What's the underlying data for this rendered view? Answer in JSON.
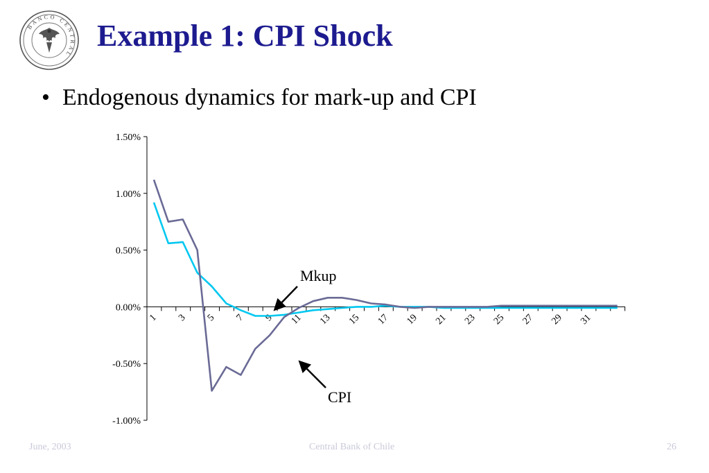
{
  "slide": {
    "title": "Example 1: CPI Shock",
    "bullet_marker": "•",
    "bullet_text": "Endogenous dynamics for mark-up and CPI",
    "logo_ring_text": "BANCO CENTRAL",
    "footer": {
      "date": "June, 2003",
      "center": "Central Bank of Chile",
      "page": "26"
    }
  },
  "colors": {
    "title": "#1d1b8f",
    "series_mkup": "#00c8f0",
    "series_cpi": "#6a6a96",
    "footer": "#c9c9d9"
  },
  "chart_data": {
    "type": "line",
    "title": "",
    "xlabel": "",
    "ylabel": "",
    "x": [
      1,
      2,
      3,
      4,
      5,
      6,
      7,
      8,
      9,
      10,
      11,
      12,
      13,
      14,
      15,
      16,
      17,
      18,
      19,
      20,
      21,
      22,
      23,
      24,
      25,
      26,
      27,
      28,
      29,
      30,
      31,
      32,
      33
    ],
    "x_tick_labels": [
      "1",
      "3",
      "5",
      "7",
      "9",
      "11",
      "13",
      "15",
      "17",
      "19",
      "21",
      "23",
      "25",
      "27",
      "29",
      "31"
    ],
    "ylim": [
      -0.01,
      0.015
    ],
    "y_ticks": [
      {
        "value": 0.015,
        "label": "1.50%"
      },
      {
        "value": 0.01,
        "label": "1.00%"
      },
      {
        "value": 0.005,
        "label": "0.50%"
      },
      {
        "value": 0.0,
        "label": "0.00%"
      },
      {
        "value": -0.005,
        "label": "-0.50%"
      },
      {
        "value": -0.01,
        "label": "-1.00%"
      }
    ],
    "grid": false,
    "series": [
      {
        "name": "Mkup",
        "color": "#00c8f0",
        "values": [
          0.0092,
          0.0056,
          0.0057,
          0.003,
          0.0018,
          0.0003,
          -0.0003,
          -0.0008,
          -0.0008,
          -0.0007,
          -0.0005,
          -0.0003,
          -0.0002,
          -0.0001,
          0.0,
          0.0,
          0.0001,
          0.0,
          0.0,
          0.0,
          -0.0001,
          -0.0001,
          -0.0001,
          -0.0001,
          -0.0001,
          -0.0001,
          -0.0001,
          -0.0001,
          -0.0001,
          -0.0001,
          -0.0001,
          -0.0001,
          -0.0001
        ]
      },
      {
        "name": "CPI",
        "color": "#6a6a96",
        "values": [
          0.0112,
          0.0075,
          0.0077,
          0.005,
          -0.0074,
          -0.0053,
          -0.006,
          -0.0037,
          -0.0025,
          -0.0009,
          -0.0001,
          0.0005,
          0.0008,
          0.0008,
          0.0006,
          0.0003,
          0.0002,
          0.0,
          -0.0001,
          0.0,
          0.0,
          0.0,
          0.0,
          0.0,
          0.0001,
          0.0001,
          0.0001,
          0.0001,
          0.0001,
          0.0001,
          0.0001,
          0.0001,
          0.0001
        ]
      }
    ],
    "annotations": [
      {
        "text": "Mkup",
        "series": "Mkup",
        "pointer": "arrow to line near x=9"
      },
      {
        "text": "CPI",
        "series": "CPI",
        "pointer": "arrow to line near x=11"
      }
    ]
  }
}
